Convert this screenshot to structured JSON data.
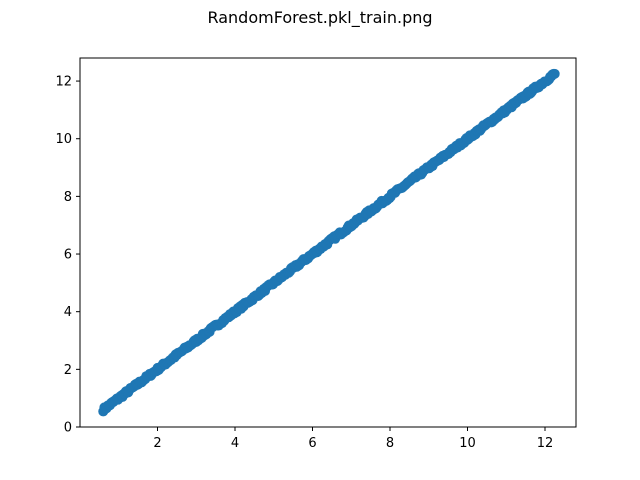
{
  "figure": {
    "title": "RandomForest.pkl_train.png"
  },
  "chart_data": {
    "type": "scatter",
    "title": "RandomForest.pkl_train.png",
    "xlabel": "",
    "ylabel": "",
    "xlim": [
      0.0,
      12.8
    ],
    "ylim": [
      0.0,
      12.8
    ],
    "xticks": [
      2,
      4,
      6,
      8,
      10,
      12
    ],
    "yticks": [
      0,
      2,
      4,
      6,
      8,
      10,
      12
    ],
    "grid": false,
    "point_color": "#1f77b4",
    "series": [
      {
        "x_range": [
          0.6,
          12.25
        ],
        "relation": "y ≈ x",
        "point_count": 400
      }
    ]
  }
}
